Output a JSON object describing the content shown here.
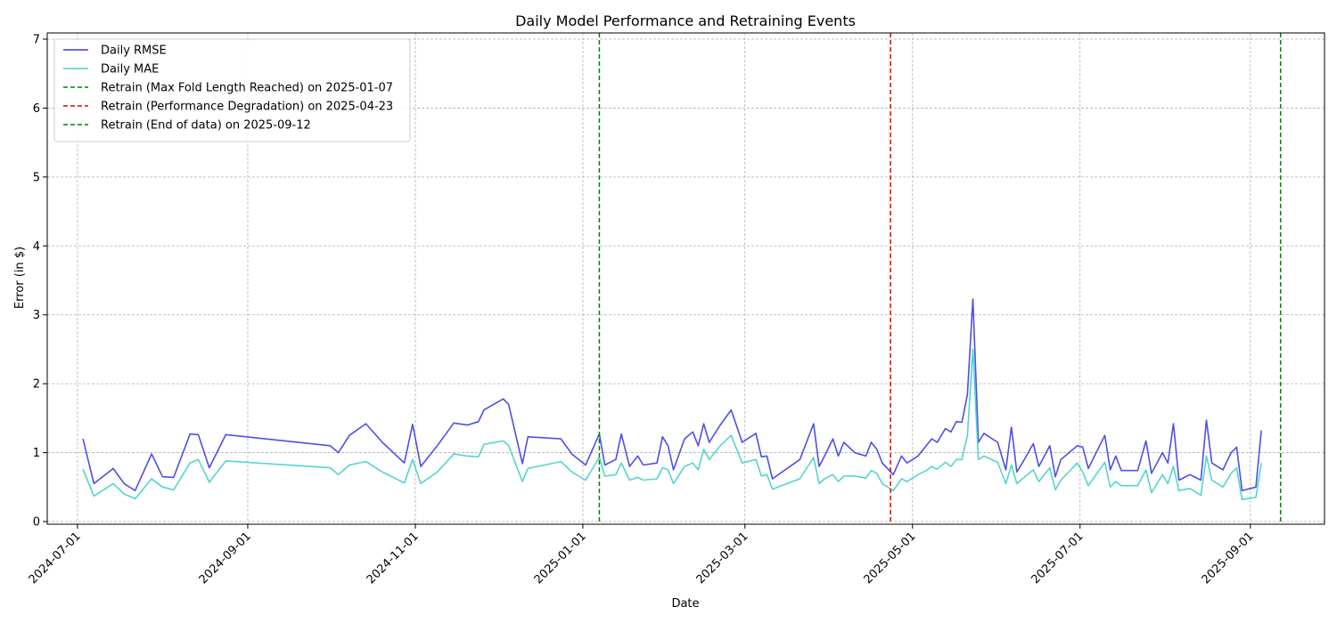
{
  "chart_data": {
    "type": "line",
    "title": "Daily Model Performance and Retraining Events",
    "xlabel": "Date",
    "ylabel": "Error (in $)",
    "xlim": [
      "2024-06-20",
      "2025-09-28"
    ],
    "ylim": [
      0,
      7
    ],
    "x_ticks": [
      "2024-07-01",
      "2024-09-01",
      "2024-11-01",
      "2025-01-01",
      "2025-03-01",
      "2025-05-01",
      "2025-07-01",
      "2025-09-01"
    ],
    "y_ticks": [
      0,
      1,
      2,
      3,
      4,
      5,
      6,
      7
    ],
    "grid": true,
    "legend_position": "top-left",
    "series": [
      {
        "name": "Daily RMSE",
        "color": "#3b3be6",
        "points": [
          [
            "2024-07-03",
            1.2
          ],
          [
            "2024-07-07",
            0.55
          ],
          [
            "2024-07-14",
            0.77
          ],
          [
            "2024-07-18",
            0.55
          ],
          [
            "2024-07-22",
            0.45
          ],
          [
            "2024-07-28",
            0.98
          ],
          [
            "2024-08-01",
            0.65
          ],
          [
            "2024-08-05",
            0.64
          ],
          [
            "2024-08-11",
            1.27
          ],
          [
            "2024-08-14",
            1.26
          ],
          [
            "2024-08-18",
            0.78
          ],
          [
            "2024-08-24",
            1.26
          ],
          [
            "2024-10-01",
            1.1
          ],
          [
            "2024-10-04",
            1.0
          ],
          [
            "2024-10-08",
            1.25
          ],
          [
            "2024-10-14",
            1.42
          ],
          [
            "2024-10-20",
            1.15
          ],
          [
            "2024-10-28",
            0.85
          ],
          [
            "2024-10-31",
            1.41
          ],
          [
            "2024-11-03",
            0.8
          ],
          [
            "2024-11-09",
            1.1
          ],
          [
            "2024-11-15",
            1.43
          ],
          [
            "2024-11-20",
            1.4
          ],
          [
            "2024-11-24",
            1.45
          ],
          [
            "2024-11-26",
            1.62
          ],
          [
            "2024-12-03",
            1.78
          ],
          [
            "2024-12-05",
            1.7
          ],
          [
            "2024-12-10",
            0.84
          ],
          [
            "2024-12-12",
            1.23
          ],
          [
            "2024-12-24",
            1.2
          ],
          [
            "2024-12-28",
            0.98
          ],
          [
            "2025-01-02",
            0.82
          ],
          [
            "2025-01-07",
            1.27
          ],
          [
            "2025-01-09",
            0.82
          ],
          [
            "2025-01-13",
            0.9
          ],
          [
            "2025-01-15",
            1.27
          ],
          [
            "2025-01-18",
            0.8
          ],
          [
            "2025-01-21",
            0.95
          ],
          [
            "2025-01-23",
            0.82
          ],
          [
            "2025-01-28",
            0.85
          ],
          [
            "2025-01-30",
            1.23
          ],
          [
            "2025-02-01",
            1.1
          ],
          [
            "2025-02-03",
            0.75
          ],
          [
            "2025-02-07",
            1.2
          ],
          [
            "2025-02-10",
            1.3
          ],
          [
            "2025-02-12",
            1.1
          ],
          [
            "2025-02-14",
            1.42
          ],
          [
            "2025-02-16",
            1.15
          ],
          [
            "2025-02-20",
            1.4
          ],
          [
            "2025-02-24",
            1.62
          ],
          [
            "2025-02-28",
            1.15
          ],
          [
            "2025-03-05",
            1.28
          ],
          [
            "2025-03-07",
            0.94
          ],
          [
            "2025-03-09",
            0.95
          ],
          [
            "2025-03-11",
            0.62
          ],
          [
            "2025-03-21",
            0.9
          ],
          [
            "2025-03-26",
            1.42
          ],
          [
            "2025-03-28",
            0.8
          ],
          [
            "2025-03-30",
            0.95
          ],
          [
            "2025-04-02",
            1.2
          ],
          [
            "2025-04-04",
            0.95
          ],
          [
            "2025-04-06",
            1.15
          ],
          [
            "2025-04-10",
            1.0
          ],
          [
            "2025-04-14",
            0.95
          ],
          [
            "2025-04-16",
            1.15
          ],
          [
            "2025-04-18",
            1.05
          ],
          [
            "2025-04-20",
            0.85
          ],
          [
            "2025-04-24",
            0.68
          ],
          [
            "2025-04-27",
            0.95
          ],
          [
            "2025-04-29",
            0.85
          ],
          [
            "2025-05-03",
            0.95
          ],
          [
            "2025-05-06",
            1.1
          ],
          [
            "2025-05-08",
            1.2
          ],
          [
            "2025-05-10",
            1.15
          ],
          [
            "2025-05-13",
            1.35
          ],
          [
            "2025-05-15",
            1.3
          ],
          [
            "2025-05-17",
            1.45
          ],
          [
            "2025-05-19",
            1.44
          ],
          [
            "2025-05-21",
            1.85
          ],
          [
            "2025-05-23",
            3.23
          ],
          [
            "2025-05-25",
            1.15
          ],
          [
            "2025-05-27",
            1.28
          ],
          [
            "2025-06-01",
            1.15
          ],
          [
            "2025-06-04",
            0.75
          ],
          [
            "2025-06-06",
            1.37
          ],
          [
            "2025-06-08",
            0.72
          ],
          [
            "2025-06-10",
            0.85
          ],
          [
            "2025-06-14",
            1.13
          ],
          [
            "2025-06-16",
            0.8
          ],
          [
            "2025-06-20",
            1.1
          ],
          [
            "2025-06-22",
            0.65
          ],
          [
            "2025-06-24",
            0.9
          ],
          [
            "2025-06-30",
            1.1
          ],
          [
            "2025-07-02",
            1.08
          ],
          [
            "2025-07-04",
            0.77
          ],
          [
            "2025-07-10",
            1.25
          ],
          [
            "2025-07-12",
            0.75
          ],
          [
            "2025-07-14",
            0.95
          ],
          [
            "2025-07-16",
            0.74
          ],
          [
            "2025-07-22",
            0.74
          ],
          [
            "2025-07-25",
            1.17
          ],
          [
            "2025-07-27",
            0.7
          ],
          [
            "2025-07-31",
            1.0
          ],
          [
            "2025-08-02",
            0.85
          ],
          [
            "2025-08-04",
            1.42
          ],
          [
            "2025-08-06",
            0.6
          ],
          [
            "2025-08-10",
            0.68
          ],
          [
            "2025-08-14",
            0.6
          ],
          [
            "2025-08-16",
            1.47
          ],
          [
            "2025-08-18",
            0.85
          ],
          [
            "2025-08-22",
            0.75
          ],
          [
            "2025-08-25",
            1.0
          ],
          [
            "2025-08-27",
            1.08
          ],
          [
            "2025-08-29",
            0.45
          ],
          [
            "2025-09-03",
            0.5
          ],
          [
            "2025-09-05",
            1.32
          ]
        ]
      },
      {
        "name": "Daily MAE",
        "color": "#40d0c8",
        "points": [
          [
            "2024-07-03",
            0.76
          ],
          [
            "2024-07-07",
            0.37
          ],
          [
            "2024-07-14",
            0.55
          ],
          [
            "2024-07-18",
            0.4
          ],
          [
            "2024-07-22",
            0.33
          ],
          [
            "2024-07-28",
            0.62
          ],
          [
            "2024-08-01",
            0.5
          ],
          [
            "2024-08-05",
            0.46
          ],
          [
            "2024-08-11",
            0.85
          ],
          [
            "2024-08-14",
            0.9
          ],
          [
            "2024-08-18",
            0.57
          ],
          [
            "2024-08-24",
            0.88
          ],
          [
            "2024-10-01",
            0.78
          ],
          [
            "2024-10-04",
            0.68
          ],
          [
            "2024-10-08",
            0.82
          ],
          [
            "2024-10-14",
            0.87
          ],
          [
            "2024-10-20",
            0.72
          ],
          [
            "2024-10-28",
            0.56
          ],
          [
            "2024-10-31",
            0.9
          ],
          [
            "2024-11-03",
            0.55
          ],
          [
            "2024-11-09",
            0.72
          ],
          [
            "2024-11-15",
            0.98
          ],
          [
            "2024-11-20",
            0.95
          ],
          [
            "2024-11-24",
            0.94
          ],
          [
            "2024-11-26",
            1.12
          ],
          [
            "2024-12-03",
            1.17
          ],
          [
            "2024-12-05",
            1.1
          ],
          [
            "2024-12-10",
            0.58
          ],
          [
            "2024-12-12",
            0.77
          ],
          [
            "2024-12-24",
            0.87
          ],
          [
            "2024-12-28",
            0.72
          ],
          [
            "2025-01-02",
            0.6
          ],
          [
            "2025-01-07",
            0.93
          ],
          [
            "2025-01-09",
            0.66
          ],
          [
            "2025-01-13",
            0.68
          ],
          [
            "2025-01-15",
            0.85
          ],
          [
            "2025-01-18",
            0.6
          ],
          [
            "2025-01-21",
            0.64
          ],
          [
            "2025-01-23",
            0.6
          ],
          [
            "2025-01-28",
            0.62
          ],
          [
            "2025-01-30",
            0.78
          ],
          [
            "2025-02-01",
            0.75
          ],
          [
            "2025-02-03",
            0.55
          ],
          [
            "2025-02-07",
            0.8
          ],
          [
            "2025-02-10",
            0.85
          ],
          [
            "2025-02-12",
            0.75
          ],
          [
            "2025-02-14",
            1.05
          ],
          [
            "2025-02-16",
            0.9
          ],
          [
            "2025-02-20",
            1.1
          ],
          [
            "2025-02-24",
            1.25
          ],
          [
            "2025-02-28",
            0.85
          ],
          [
            "2025-03-05",
            0.9
          ],
          [
            "2025-03-07",
            0.66
          ],
          [
            "2025-03-09",
            0.68
          ],
          [
            "2025-03-11",
            0.47
          ],
          [
            "2025-03-21",
            0.62
          ],
          [
            "2025-03-26",
            0.93
          ],
          [
            "2025-03-28",
            0.55
          ],
          [
            "2025-03-30",
            0.62
          ],
          [
            "2025-04-02",
            0.68
          ],
          [
            "2025-04-04",
            0.58
          ],
          [
            "2025-04-06",
            0.66
          ],
          [
            "2025-04-10",
            0.66
          ],
          [
            "2025-04-14",
            0.63
          ],
          [
            "2025-04-16",
            0.74
          ],
          [
            "2025-04-18",
            0.7
          ],
          [
            "2025-04-20",
            0.55
          ],
          [
            "2025-04-24",
            0.45
          ],
          [
            "2025-04-27",
            0.62
          ],
          [
            "2025-04-29",
            0.58
          ],
          [
            "2025-05-03",
            0.68
          ],
          [
            "2025-05-06",
            0.74
          ],
          [
            "2025-05-08",
            0.8
          ],
          [
            "2025-05-10",
            0.76
          ],
          [
            "2025-05-13",
            0.86
          ],
          [
            "2025-05-15",
            0.8
          ],
          [
            "2025-05-17",
            0.9
          ],
          [
            "2025-05-19",
            0.9
          ],
          [
            "2025-05-21",
            1.25
          ],
          [
            "2025-05-23",
            2.5
          ],
          [
            "2025-05-25",
            0.9
          ],
          [
            "2025-05-27",
            0.95
          ],
          [
            "2025-06-01",
            0.86
          ],
          [
            "2025-06-04",
            0.55
          ],
          [
            "2025-06-06",
            0.82
          ],
          [
            "2025-06-08",
            0.55
          ],
          [
            "2025-06-10",
            0.62
          ],
          [
            "2025-06-14",
            0.75
          ],
          [
            "2025-06-16",
            0.58
          ],
          [
            "2025-06-20",
            0.78
          ],
          [
            "2025-06-22",
            0.46
          ],
          [
            "2025-06-24",
            0.6
          ],
          [
            "2025-06-30",
            0.85
          ],
          [
            "2025-07-02",
            0.72
          ],
          [
            "2025-07-04",
            0.52
          ],
          [
            "2025-07-10",
            0.86
          ],
          [
            "2025-07-12",
            0.5
          ],
          [
            "2025-07-14",
            0.58
          ],
          [
            "2025-07-16",
            0.52
          ],
          [
            "2025-07-22",
            0.52
          ],
          [
            "2025-07-25",
            0.75
          ],
          [
            "2025-07-27",
            0.42
          ],
          [
            "2025-07-31",
            0.68
          ],
          [
            "2025-08-02",
            0.55
          ],
          [
            "2025-08-04",
            0.8
          ],
          [
            "2025-08-06",
            0.45
          ],
          [
            "2025-08-10",
            0.48
          ],
          [
            "2025-08-14",
            0.38
          ],
          [
            "2025-08-16",
            0.95
          ],
          [
            "2025-08-18",
            0.6
          ],
          [
            "2025-08-22",
            0.5
          ],
          [
            "2025-08-25",
            0.7
          ],
          [
            "2025-08-27",
            0.78
          ],
          [
            "2025-08-29",
            0.32
          ],
          [
            "2025-09-03",
            0.35
          ],
          [
            "2025-09-05",
            0.85
          ]
        ]
      }
    ],
    "retrain_events": [
      {
        "label": "Retrain (Max Fold Length Reached) on 2025-01-07",
        "date": "2025-01-07",
        "color": "#008000"
      },
      {
        "label": "Retrain (Performance Degradation) on 2025-04-23",
        "date": "2025-04-23",
        "color": "#e00000"
      },
      {
        "label": "Retrain (End of data) on 2025-09-12",
        "date": "2025-09-12",
        "color": "#008000"
      }
    ]
  }
}
